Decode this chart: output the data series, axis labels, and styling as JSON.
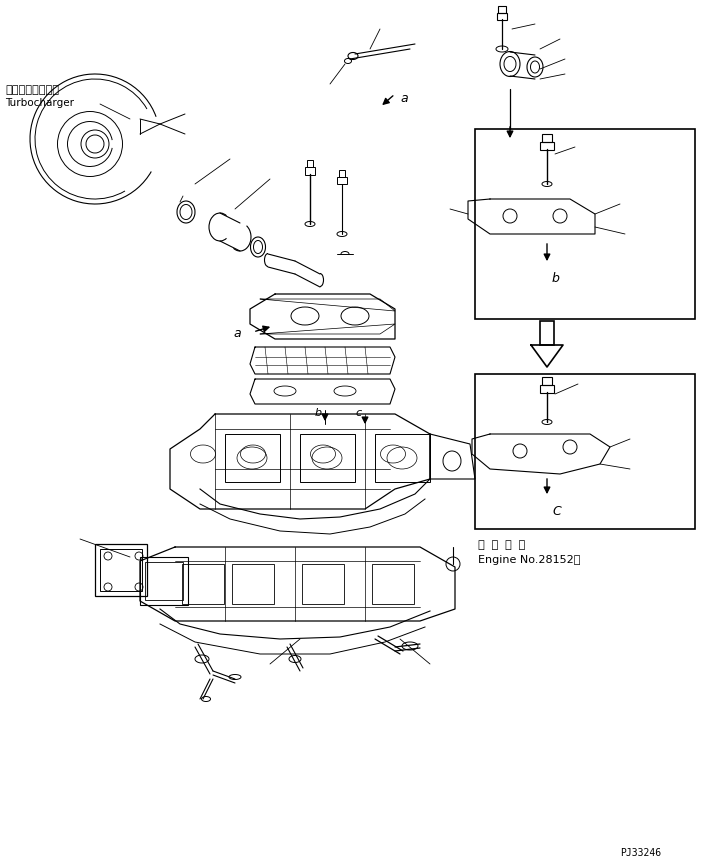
{
  "bg_color": "#ffffff",
  "line_color": "#000000",
  "fig_width": 7.01,
  "fig_height": 8.62,
  "dpi": 100,
  "turbo_label_jp": "ターボチャージャ",
  "turbo_label_en": "Turbocharger",
  "engine_no_jp": "適 用 号 機",
  "engine_no_en": "Engine No.28152～",
  "part_code": "PJ33246",
  "label_a": "a",
  "label_b": "b",
  "label_c_box": "C",
  "label_c_main": "c"
}
